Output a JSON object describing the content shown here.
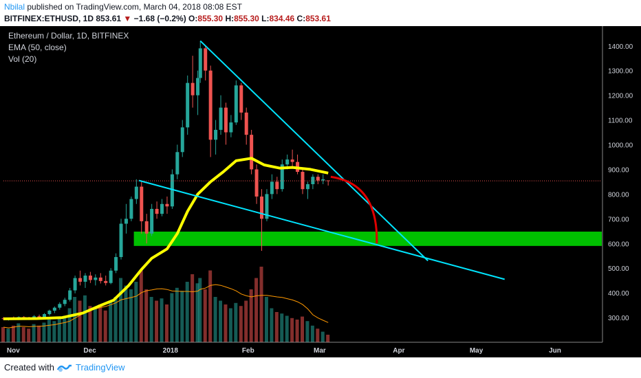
{
  "header": {
    "author": "Nbilal",
    "published_text": "published on TradingView.com, March 04, 2018 08:08 EST",
    "symbol": "BITFINEX:ETHUSD, 1D",
    "last": "853.61",
    "change": "−1.68 (−0.2%)",
    "o_label": "O:",
    "o": "855.30",
    "h_label": "H:",
    "h": "855.30",
    "l_label": "L:",
    "l": "834.46",
    "c_label": "C:",
    "c": "853.61"
  },
  "legend": {
    "title": "Ethereum / Dollar, 1D, BITFINEX",
    "ema": "EMA (50, close)",
    "vol": "Vol (20)"
  },
  "footer": {
    "created_with": "Created with",
    "brand": "TradingView"
  },
  "colors": {
    "up": "#26a69a",
    "down": "#ef5350",
    "ema": "#ffff00",
    "trendline": "#00e5ff",
    "arc": "#e00000",
    "zone": "#00c000",
    "vol_ma": "#ff9800"
  },
  "chart_data": {
    "type": "candlestick",
    "title": "Ethereum / Dollar, 1D, BITFINEX",
    "x_ticks": [
      "Nov",
      "Dec",
      "2018",
      "Feb",
      "Mar",
      "Apr",
      "May",
      "Jun"
    ],
    "x_tick_dates": [
      "2017-11-01",
      "2017-12-01",
      "2018-01-01",
      "2018-02-01",
      "2018-03-01",
      "2018-04-01",
      "2018-05-01",
      "2018-06-01"
    ],
    "y_ticks": [
      300,
      400,
      500,
      600,
      700,
      800,
      900,
      1000,
      1100,
      1200,
      1300,
      1400
    ],
    "ylim": [
      200,
      1480
    ],
    "x_range": [
      "2017-10-28",
      "2018-06-19"
    ],
    "last_price": 853.61,
    "ema_50": [
      [
        "2017-10-28",
        295
      ],
      [
        "2017-11-10",
        296
      ],
      [
        "2017-11-20",
        300
      ],
      [
        "2017-11-28",
        318
      ],
      [
        "2017-12-04",
        345
      ],
      [
        "2017-12-10",
        370
      ],
      [
        "2017-12-16",
        430
      ],
      [
        "2017-12-21",
        495
      ],
      [
        "2017-12-25",
        540
      ],
      [
        "2017-12-31",
        578
      ],
      [
        "2018-01-04",
        640
      ],
      [
        "2018-01-08",
        730
      ],
      [
        "2018-01-12",
        800
      ],
      [
        "2018-01-17",
        850
      ],
      [
        "2018-01-22",
        890
      ],
      [
        "2018-01-27",
        935
      ],
      [
        "2018-02-02",
        945
      ],
      [
        "2018-02-07",
        918
      ],
      [
        "2018-02-13",
        905
      ],
      [
        "2018-02-18",
        908
      ],
      [
        "2018-02-25",
        900
      ],
      [
        "2018-03-04",
        885
      ]
    ],
    "trendlines": [
      {
        "name": "upper",
        "from": [
          "2018-01-13",
          1420
        ],
        "to": [
          "2018-04-12",
          530
        ]
      },
      {
        "name": "lower",
        "from": [
          "2017-12-20",
          855
        ],
        "to": [
          "2018-05-12",
          455
        ]
      }
    ],
    "arc": {
      "from": [
        "2018-03-05",
        870
      ],
      "to": [
        "2018-03-23",
        600
      ]
    },
    "support_zone": {
      "x_from": "2017-12-18",
      "x_to": "2018-06-19",
      "y_from": 590,
      "y_to": 648
    },
    "candles": [
      [
        "2017-10-28",
        297,
        302,
        290,
        295
      ],
      [
        "2017-10-30",
        295,
        300,
        288,
        298
      ],
      [
        "2017-11-01",
        298,
        304,
        292,
        296
      ],
      [
        "2017-11-03",
        296,
        305,
        290,
        302
      ],
      [
        "2017-11-05",
        302,
        306,
        294,
        298
      ],
      [
        "2017-11-07",
        298,
        303,
        290,
        296
      ],
      [
        "2017-11-09",
        296,
        310,
        292,
        305
      ],
      [
        "2017-11-11",
        305,
        312,
        295,
        300
      ],
      [
        "2017-11-13",
        300,
        318,
        296,
        314
      ],
      [
        "2017-11-15",
        314,
        332,
        308,
        328
      ],
      [
        "2017-11-17",
        328,
        345,
        318,
        340
      ],
      [
        "2017-11-19",
        340,
        362,
        332,
        355
      ],
      [
        "2017-11-21",
        355,
        380,
        346,
        372
      ],
      [
        "2017-11-23",
        372,
        420,
        365,
        410
      ],
      [
        "2017-11-25",
        410,
        470,
        398,
        460
      ],
      [
        "2017-11-27",
        460,
        490,
        430,
        445
      ],
      [
        "2017-11-29",
        445,
        480,
        420,
        470
      ],
      [
        "2017-12-01",
        470,
        485,
        440,
        452
      ],
      [
        "2017-12-03",
        452,
        475,
        430,
        462
      ],
      [
        "2017-12-05",
        462,
        480,
        438,
        448
      ],
      [
        "2017-12-07",
        448,
        470,
        430,
        440
      ],
      [
        "2017-12-09",
        440,
        500,
        435,
        490
      ],
      [
        "2017-12-11",
        490,
        560,
        480,
        545
      ],
      [
        "2017-12-13",
        545,
        700,
        535,
        680
      ],
      [
        "2017-12-15",
        680,
        760,
        640,
        700
      ],
      [
        "2017-12-17",
        700,
        790,
        690,
        780
      ],
      [
        "2017-12-19",
        780,
        860,
        760,
        830
      ],
      [
        "2017-12-21",
        830,
        850,
        640,
        690
      ],
      [
        "2017-12-23",
        690,
        720,
        600,
        640
      ],
      [
        "2017-12-25",
        640,
        760,
        630,
        740
      ],
      [
        "2017-12-27",
        740,
        770,
        700,
        720
      ],
      [
        "2017-12-29",
        720,
        780,
        710,
        760
      ],
      [
        "2017-12-31",
        760,
        790,
        720,
        750
      ],
      [
        "2018-01-02",
        750,
        900,
        740,
        880
      ],
      [
        "2018-01-04",
        880,
        1000,
        860,
        970
      ],
      [
        "2018-01-06",
        970,
        1100,
        950,
        1070
      ],
      [
        "2018-01-08",
        1070,
        1280,
        1040,
        1250
      ],
      [
        "2018-01-10",
        1250,
        1360,
        1150,
        1200
      ],
      [
        "2018-01-12",
        1200,
        1300,
        1120,
        1270
      ],
      [
        "2018-01-13",
        1270,
        1420,
        1250,
        1390
      ],
      [
        "2018-01-15",
        1390,
        1400,
        1260,
        1300
      ],
      [
        "2018-01-17",
        1300,
        1320,
        950,
        1020
      ],
      [
        "2018-01-19",
        1020,
        1100,
        960,
        1060
      ],
      [
        "2018-01-21",
        1060,
        1200,
        1040,
        1150
      ],
      [
        "2018-01-23",
        1150,
        1170,
        1000,
        1050
      ],
      [
        "2018-01-25",
        1050,
        1120,
        1030,
        1090
      ],
      [
        "2018-01-27",
        1090,
        1260,
        1080,
        1240
      ],
      [
        "2018-01-29",
        1240,
        1250,
        1100,
        1130
      ],
      [
        "2018-01-31",
        1130,
        1150,
        1000,
        1040
      ],
      [
        "2018-02-02",
        1040,
        1060,
        880,
        900
      ],
      [
        "2018-02-04",
        900,
        920,
        760,
        790
      ],
      [
        "2018-02-06",
        790,
        820,
        570,
        700
      ],
      [
        "2018-02-08",
        700,
        820,
        690,
        800
      ],
      [
        "2018-02-10",
        800,
        880,
        780,
        850
      ],
      [
        "2018-02-12",
        850,
        870,
        800,
        820
      ],
      [
        "2018-02-14",
        820,
        940,
        810,
        920
      ],
      [
        "2018-02-16",
        920,
        960,
        900,
        940
      ],
      [
        "2018-02-18",
        940,
        980,
        910,
        930
      ],
      [
        "2018-02-20",
        930,
        960,
        880,
        890
      ],
      [
        "2018-02-22",
        890,
        900,
        800,
        820
      ],
      [
        "2018-02-24",
        820,
        850,
        780,
        840
      ],
      [
        "2018-02-26",
        840,
        880,
        820,
        870
      ],
      [
        "2018-02-28",
        870,
        880,
        840,
        855
      ],
      [
        "2018-03-02",
        855,
        880,
        840,
        860
      ],
      [
        "2018-03-04",
        855.3,
        855.3,
        834.46,
        853.61
      ]
    ],
    "volume": [
      [
        "2017-10-28",
        20
      ],
      [
        "2017-10-30",
        18
      ],
      [
        "2017-11-01",
        22
      ],
      [
        "2017-11-03",
        25
      ],
      [
        "2017-11-05",
        20
      ],
      [
        "2017-11-07",
        18
      ],
      [
        "2017-11-09",
        24
      ],
      [
        "2017-11-11",
        22
      ],
      [
        "2017-11-13",
        26
      ],
      [
        "2017-11-15",
        30
      ],
      [
        "2017-11-17",
        28
      ],
      [
        "2017-11-19",
        32
      ],
      [
        "2017-11-21",
        35
      ],
      [
        "2017-11-23",
        45
      ],
      [
        "2017-11-25",
        60
      ],
      [
        "2017-11-27",
        55
      ],
      [
        "2017-11-29",
        62
      ],
      [
        "2017-12-01",
        48
      ],
      [
        "2017-12-03",
        45
      ],
      [
        "2017-12-05",
        50
      ],
      [
        "2017-12-07",
        42
      ],
      [
        "2017-12-09",
        55
      ],
      [
        "2017-12-11",
        60
      ],
      [
        "2017-12-13",
        85
      ],
      [
        "2017-12-15",
        75
      ],
      [
        "2017-12-17",
        70
      ],
      [
        "2017-12-19",
        80
      ],
      [
        "2017-12-21",
        95
      ],
      [
        "2017-12-23",
        70
      ],
      [
        "2017-12-25",
        60
      ],
      [
        "2017-12-27",
        55
      ],
      [
        "2017-12-29",
        58
      ],
      [
        "2017-12-31",
        50
      ],
      [
        "2018-01-02",
        65
      ],
      [
        "2018-01-04",
        72
      ],
      [
        "2018-01-06",
        68
      ],
      [
        "2018-01-08",
        80
      ],
      [
        "2018-01-10",
        90
      ],
      [
        "2018-01-12",
        78
      ],
      [
        "2018-01-13",
        85
      ],
      [
        "2018-01-15",
        70
      ],
      [
        "2018-01-17",
        95
      ],
      [
        "2018-01-19",
        60
      ],
      [
        "2018-01-21",
        55
      ],
      [
        "2018-01-23",
        50
      ],
      [
        "2018-01-25",
        45
      ],
      [
        "2018-01-27",
        52
      ],
      [
        "2018-01-29",
        48
      ],
      [
        "2018-01-31",
        55
      ],
      [
        "2018-02-02",
        70
      ],
      [
        "2018-02-04",
        85
      ],
      [
        "2018-02-06",
        100
      ],
      [
        "2018-02-08",
        60
      ],
      [
        "2018-02-10",
        45
      ],
      [
        "2018-02-12",
        40
      ],
      [
        "2018-02-14",
        38
      ],
      [
        "2018-02-16",
        35
      ],
      [
        "2018-02-18",
        32
      ],
      [
        "2018-02-20",
        30
      ],
      [
        "2018-02-22",
        34
      ],
      [
        "2018-02-24",
        28
      ],
      [
        "2018-02-26",
        22
      ],
      [
        "2018-02-28",
        18
      ],
      [
        "2018-03-02",
        14
      ],
      [
        "2018-03-04",
        10
      ]
    ]
  }
}
